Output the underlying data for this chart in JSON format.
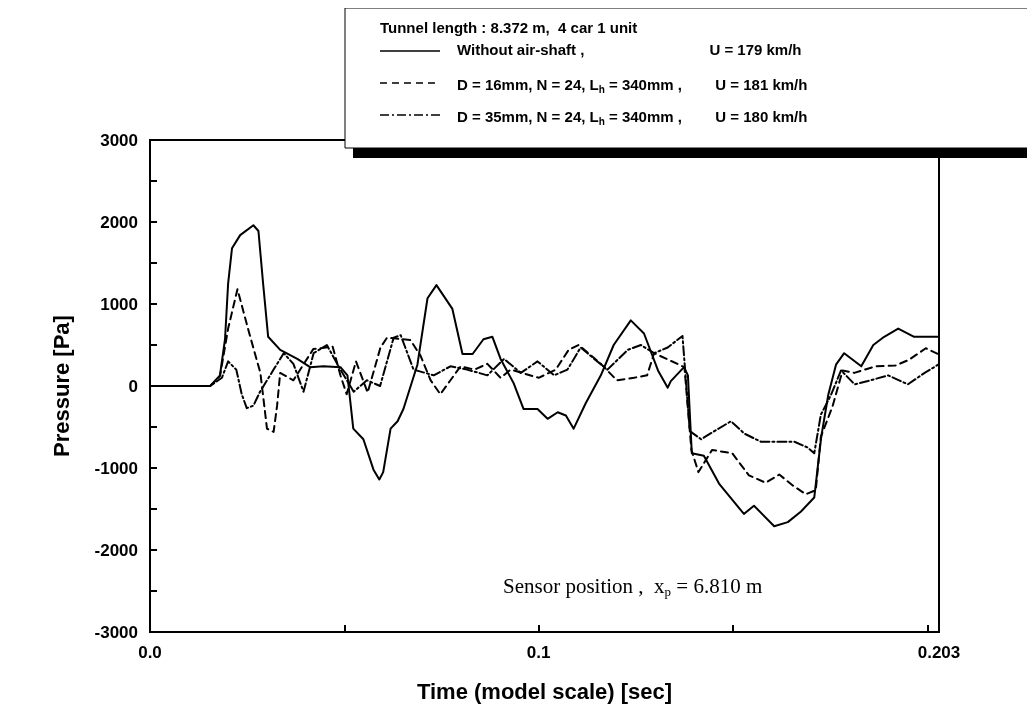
{
  "chart_data": {
    "type": "line",
    "xlabel": "Time (model scale) [sec]",
    "ylabel": "Pressure [Pa]",
    "legend_title": "Tunnel length : 8.372 m,  4 car 1 unit",
    "legend": "top right",
    "grid": false,
    "marker": "none",
    "xlim": [
      0,
      0.203
    ],
    "xticks": [
      {
        "value": 0,
        "label": "0.0"
      },
      {
        "value": 0.05,
        "label": null
      },
      0.1,
      {
        "value": 0.15,
        "label": null
      },
      {
        "value": 0.2,
        "label": null
      },
      0.203
    ],
    "ylim": [
      -3000,
      3000
    ],
    "yticks": [
      -3000,
      {
        "value": -2500,
        "label": null
      },
      -2000,
      {
        "value": -1500,
        "label": null
      },
      -1000,
      {
        "value": -500,
        "label": null
      },
      0,
      {
        "value": 500,
        "label": null
      },
      1000,
      {
        "value": 1500,
        "label": null
      },
      2000,
      {
        "value": 2500,
        "label": null
      },
      3000
    ],
    "annotations": [
      "Sensor position ,  x$_{p}$ = 6.810 m"
    ],
    "series": [
      {
        "name": "Without air-shaft ,                              U = 179 km/h",
        "color": "#000000",
        "line_style": "solid",
        "x": [
          0,
          0.0155,
          0.018,
          0.0193,
          0.0201,
          0.0211,
          0.0232,
          0.0266,
          0.0279,
          0.0291,
          0.0304,
          0.0335,
          0.0379,
          0.0412,
          0.0446,
          0.049,
          0.0508,
          0.0523,
          0.0549,
          0.0575,
          0.059,
          0.06,
          0.0619,
          0.0637,
          0.0652,
          0.0688,
          0.0714,
          0.0737,
          0.0778,
          0.0804,
          0.083,
          0.0858,
          0.0881,
          0.0902,
          0.0936,
          0.0961,
          0.0997,
          0.1023,
          0.1049,
          0.107,
          0.109,
          0.1121,
          0.116,
          0.1193,
          0.1237,
          0.1271,
          0.1307,
          0.1332,
          0.134,
          0.1374,
          0.1384,
          0.1394,
          0.1425,
          0.1464,
          0.1528,
          0.1554,
          0.1606,
          0.1641,
          0.1675,
          0.1709,
          0.1727,
          0.1745,
          0.1765,
          0.1786,
          0.183,
          0.1861,
          0.1889,
          0.1925,
          0.1966,
          0.2028
        ],
        "values": [
          0,
          0,
          130,
          570,
          1250,
          1680,
          1840,
          1960,
          1890,
          1250,
          600,
          440,
          330,
          230,
          240,
          230,
          130,
          -520,
          -650,
          -1020,
          -1140,
          -1050,
          -520,
          -430,
          -280,
          260,
          1070,
          1230,
          940,
          390,
          390,
          570,
          600,
          330,
          30,
          -280,
          -280,
          -400,
          -320,
          -360,
          -520,
          -210,
          130,
          500,
          800,
          640,
          190,
          -20,
          60,
          230,
          130,
          -820,
          -850,
          -1190,
          -1560,
          -1460,
          -1710,
          -1660,
          -1530,
          -1360,
          -620,
          -110,
          260,
          400,
          240,
          500,
          600,
          700,
          600,
          600
        ]
      },
      {
        "name": "D = 16mm, N = 24, L$_{h}$ = 340mm ,        U = 181 km/h",
        "color": "#000000",
        "line_style": "dashed",
        "x": [
          0,
          0.0155,
          0.018,
          0.0201,
          0.0225,
          0.0255,
          0.0284,
          0.0301,
          0.0318,
          0.0327,
          0.0335,
          0.0369,
          0.042,
          0.047,
          0.049,
          0.0506,
          0.053,
          0.056,
          0.0593,
          0.061,
          0.067,
          0.0696,
          0.0722,
          0.0747,
          0.0773,
          0.0799,
          0.0835,
          0.0868,
          0.0902,
          0.0928,
          0.1,
          0.1044,
          0.1077,
          0.1103,
          0.116,
          0.1201,
          0.1245,
          0.1279,
          0.1297,
          0.1375,
          0.1393,
          0.1411,
          0.1446,
          0.1498,
          0.1541,
          0.1584,
          0.1619,
          0.1653,
          0.1687,
          0.1713,
          0.1726,
          0.1756,
          0.1782,
          0.1812,
          0.1867,
          0.1918,
          0.1953,
          0.1996,
          0.2028
        ],
        "values": [
          0,
          0,
          120,
          700,
          1180,
          650,
          160,
          -520,
          -560,
          -240,
          160,
          70,
          450,
          480,
          130,
          -100,
          300,
          -80,
          470,
          590,
          560,
          370,
          70,
          -100,
          70,
          240,
          200,
          270,
          100,
          200,
          100,
          200,
          440,
          500,
          270,
          70,
          100,
          130,
          400,
          230,
          -780,
          -1050,
          -780,
          -820,
          -1090,
          -1180,
          -1080,
          -1210,
          -1320,
          -1270,
          -620,
          -250,
          190,
          160,
          240,
          250,
          320,
          460,
          390
        ]
      },
      {
        "name": "D = 35mm, N = 24, L$_{h}$ = 340mm ,        U = 180 km/h",
        "color": "#000000",
        "line_style": "dashdot",
        "x": [
          0,
          0.0155,
          0.0185,
          0.0201,
          0.0222,
          0.0236,
          0.0249,
          0.0266,
          0.0283,
          0.0318,
          0.0344,
          0.0369,
          0.0395,
          0.0421,
          0.0455,
          0.049,
          0.0524,
          0.0558,
          0.0592,
          0.0627,
          0.0645,
          0.0678,
          0.073,
          0.0773,
          0.0816,
          0.0868,
          0.0911,
          0.0954,
          0.0997,
          0.104,
          0.1074,
          0.1108,
          0.1143,
          0.1177,
          0.1229,
          0.1263,
          0.1297,
          0.1332,
          0.137,
          0.1389,
          0.1418,
          0.1452,
          0.1495,
          0.1529,
          0.1572,
          0.1615,
          0.1658,
          0.1692,
          0.1709,
          0.1726,
          0.1752,
          0.1778,
          0.1813,
          0.1847,
          0.1899,
          0.195,
          0.1993,
          0.2028
        ],
        "values": [
          0,
          0,
          100,
          300,
          200,
          -100,
          -270,
          -240,
          -70,
          200,
          400,
          270,
          -70,
          400,
          500,
          200,
          -70,
          70,
          0,
          590,
          620,
          200,
          130,
          240,
          200,
          130,
          330,
          160,
          300,
          130,
          200,
          470,
          330,
          200,
          440,
          500,
          400,
          470,
          610,
          -550,
          -650,
          -550,
          -430,
          -580,
          -680,
          -680,
          -680,
          -750,
          -820,
          -350,
          -110,
          190,
          20,
          60,
          130,
          20,
          160,
          260
        ]
      }
    ]
  }
}
